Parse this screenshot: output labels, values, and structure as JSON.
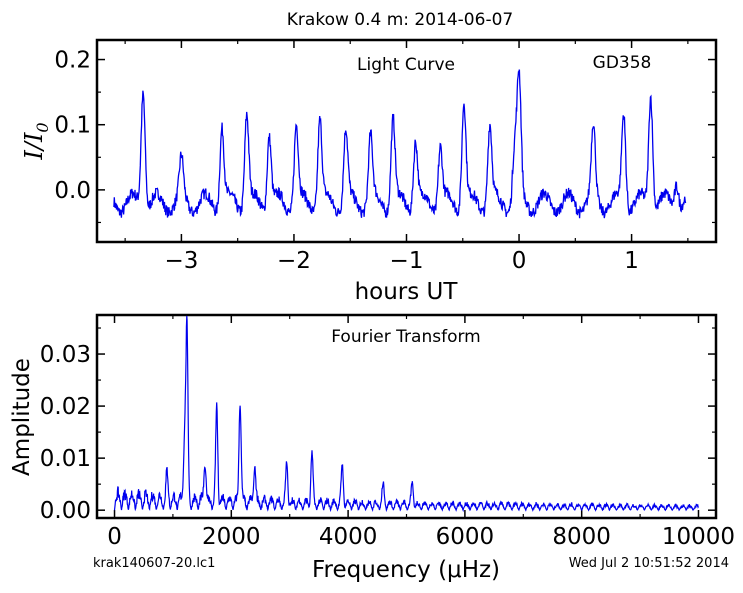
{
  "figure": {
    "title": "Krakow 0.4 m:  2014-06-07",
    "footer_left": "krak140607-20.lc1",
    "footer_right": "Wed Jul  2 10:51:52 2014"
  },
  "colors": {
    "line": "#0000ee",
    "axes": "#000000",
    "background": "#ffffff"
  },
  "chart_data": [
    {
      "type": "line",
      "annotations": [
        "Light Curve",
        "GD358"
      ],
      "xlabel": "hours UT",
      "ylabel": "I/I0",
      "xlim": [
        -3.75,
        1.75
      ],
      "ylim": [
        -0.08,
        0.23
      ],
      "xticks": [
        -3,
        -2,
        -1,
        0,
        1
      ],
      "xtick_labels": [
        "−3",
        "−2",
        "−1",
        "0",
        "1"
      ],
      "yticks": [
        0.0,
        0.1,
        0.2
      ],
      "ytick_labels": [
        "0.0",
        "0.1",
        "0.2"
      ],
      "grid": false,
      "x_range": [
        -3.6,
        1.48
      ],
      "baseline": -0.02,
      "pulse_peaks": [
        [
          -3.34,
          0.16
        ],
        [
          -3.0,
          0.04
        ],
        [
          -2.64,
          0.1
        ],
        [
          -2.42,
          0.12
        ],
        [
          -2.22,
          0.09
        ],
        [
          -1.98,
          0.1
        ],
        [
          -1.77,
          0.11
        ],
        [
          -1.54,
          0.09
        ],
        [
          -1.32,
          0.08
        ],
        [
          -1.12,
          0.11
        ],
        [
          -0.92,
          0.08
        ],
        [
          -0.7,
          0.07
        ],
        [
          -0.49,
          0.14
        ],
        [
          -0.26,
          0.1
        ],
        [
          -0.04,
          0.06
        ],
        [
          0.0,
          0.165
        ],
        [
          0.66,
          0.09
        ],
        [
          0.93,
          0.12
        ],
        [
          1.17,
          0.155
        ],
        [
          1.4,
          0.02
        ]
      ],
      "series": [
        {
          "values_described_by": "pulse_peaks"
        }
      ]
    },
    {
      "type": "line",
      "annotations": [
        "Fourier Transform"
      ],
      "xlabel": "Frequency (μHz)",
      "ylabel": "Amplitude",
      "xlim": [
        -300,
        10300
      ],
      "ylim": [
        -0.0015,
        0.0375
      ],
      "xticks": [
        0,
        2000,
        4000,
        6000,
        8000,
        10000
      ],
      "xtick_labels": [
        "0",
        "2000",
        "4000",
        "6000",
        "8000",
        "10000"
      ],
      "yticks": [
        0.0,
        0.01,
        0.02,
        0.03
      ],
      "ytick_labels": [
        "0.00",
        "0.01",
        "0.02",
        "0.03"
      ],
      "grid": false,
      "peaks": [
        [
          1200,
          0.013
        ],
        [
          1240,
          0.033
        ],
        [
          1750,
          0.018
        ],
        [
          2150,
          0.02
        ],
        [
          2400,
          0.0075
        ],
        [
          2950,
          0.0075
        ],
        [
          3380,
          0.0095
        ],
        [
          3900,
          0.0075
        ],
        [
          5100,
          0.004
        ],
        [
          4600,
          0.004
        ],
        [
          900,
          0.005
        ],
        [
          1550,
          0.008
        ]
      ]
    }
  ]
}
